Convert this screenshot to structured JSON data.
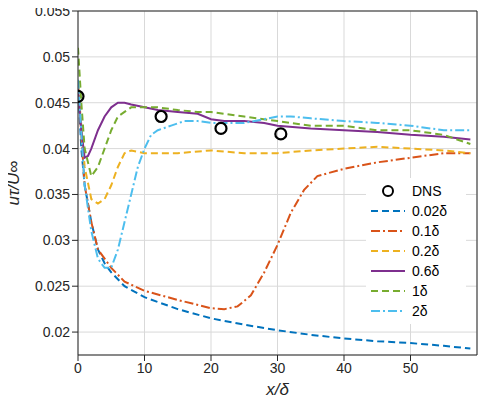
{
  "chart_data": {
    "type": "line",
    "x_label": "x/δ",
    "y_label": "uτ/U∞",
    "xlim": [
      0,
      60
    ],
    "xticks": [
      0,
      10,
      20,
      30,
      40,
      50
    ],
    "ylim": [
      0.0175,
      0.055
    ],
    "yticks": [
      0.02,
      0.025,
      0.03,
      0.035,
      0.04,
      0.045,
      0.05,
      0.055
    ],
    "grid": true,
    "legend": "right",
    "series": [
      {
        "name": "DNS",
        "type": "scatter",
        "marker": "circle",
        "color": "#000000",
        "x": [
          0,
          12.5,
          21.5,
          30.5
        ],
        "values": [
          0.0457,
          0.0435,
          0.0422,
          0.0416
        ]
      },
      {
        "name": "0.02δ",
        "type": "line",
        "line_style": "dashed",
        "marker": "none",
        "color": "#0072bd",
        "x": [
          0,
          0.5,
          1,
          2,
          3,
          4,
          5,
          7,
          10,
          15,
          20,
          25,
          30,
          35,
          40,
          45,
          50,
          55,
          59
        ],
        "values": [
          0.047,
          0.04,
          0.036,
          0.032,
          0.029,
          0.0275,
          0.0265,
          0.025,
          0.0238,
          0.0225,
          0.0215,
          0.0208,
          0.0202,
          0.0197,
          0.0193,
          0.019,
          0.0188,
          0.0185,
          0.0182
        ]
      },
      {
        "name": "0.1δ",
        "type": "line",
        "line_style": "dashdot",
        "marker": "none",
        "color": "#d95319",
        "x": [
          0,
          1,
          2,
          3,
          5,
          7,
          10,
          15,
          20,
          22,
          24,
          26,
          28,
          30,
          32,
          34,
          36,
          40,
          45,
          50,
          55,
          59
        ],
        "values": [
          0.047,
          0.036,
          0.032,
          0.029,
          0.027,
          0.0255,
          0.0245,
          0.0235,
          0.0226,
          0.0225,
          0.0228,
          0.024,
          0.0265,
          0.0295,
          0.033,
          0.0355,
          0.037,
          0.0378,
          0.0385,
          0.039,
          0.0395,
          0.0395
        ]
      },
      {
        "name": "0.2δ",
        "type": "line",
        "line_style": "dashed",
        "marker": "none",
        "color": "#edb120",
        "x": [
          0,
          1,
          2,
          3,
          4,
          5,
          6,
          7,
          8,
          10,
          15,
          20,
          25,
          30,
          35,
          40,
          45,
          50,
          55,
          59
        ],
        "values": [
          0.047,
          0.038,
          0.0345,
          0.034,
          0.0345,
          0.036,
          0.038,
          0.0395,
          0.0398,
          0.0395,
          0.0395,
          0.0398,
          0.0395,
          0.0395,
          0.0398,
          0.04,
          0.0402,
          0.04,
          0.0398,
          0.0395
        ]
      },
      {
        "name": "0.6δ",
        "type": "line",
        "line_style": "solid",
        "marker": "none",
        "color": "#7e2f8e",
        "x": [
          0,
          0.5,
          1,
          1.5,
          2,
          3,
          4,
          5,
          6,
          7,
          8,
          10,
          12,
          15,
          18,
          20,
          22,
          25,
          28,
          30,
          35,
          40,
          45,
          50,
          55,
          59
        ],
        "values": [
          0.0465,
          0.042,
          0.039,
          0.0392,
          0.04,
          0.042,
          0.0435,
          0.0445,
          0.045,
          0.045,
          0.0448,
          0.0445,
          0.0442,
          0.044,
          0.0438,
          0.0432,
          0.043,
          0.043,
          0.0428,
          0.0425,
          0.0422,
          0.042,
          0.0418,
          0.0415,
          0.0413,
          0.041
        ]
      },
      {
        "name": "1δ",
        "type": "line",
        "line_style": "dashed",
        "marker": "none",
        "color": "#77ac30",
        "x": [
          0,
          0.5,
          1,
          2,
          3,
          4,
          5,
          6,
          7,
          8,
          10,
          12,
          15,
          18,
          20,
          22,
          25,
          30,
          35,
          40,
          45,
          50,
          55,
          59
        ],
        "values": [
          0.051,
          0.045,
          0.04,
          0.037,
          0.038,
          0.04,
          0.042,
          0.0435,
          0.044,
          0.0445,
          0.0445,
          0.0445,
          0.0442,
          0.044,
          0.044,
          0.0438,
          0.0435,
          0.043,
          0.0425,
          0.0425,
          0.042,
          0.042,
          0.0415,
          0.0405
        ]
      },
      {
        "name": "2δ",
        "type": "line",
        "line_style": "dashdot",
        "marker": "none",
        "color": "#4dbeee",
        "x": [
          0,
          1,
          2,
          3,
          4,
          5,
          6,
          7,
          8,
          9,
          10,
          11,
          12,
          14,
          16,
          18,
          20,
          25,
          28,
          30,
          32,
          35,
          40,
          45,
          50,
          55,
          59
        ],
        "values": [
          0.0475,
          0.036,
          0.031,
          0.028,
          0.027,
          0.027,
          0.029,
          0.032,
          0.035,
          0.038,
          0.04,
          0.0415,
          0.042,
          0.0425,
          0.043,
          0.043,
          0.0428,
          0.0428,
          0.0432,
          0.0435,
          0.0435,
          0.0433,
          0.043,
          0.0428,
          0.0425,
          0.042,
          0.042
        ]
      }
    ]
  }
}
